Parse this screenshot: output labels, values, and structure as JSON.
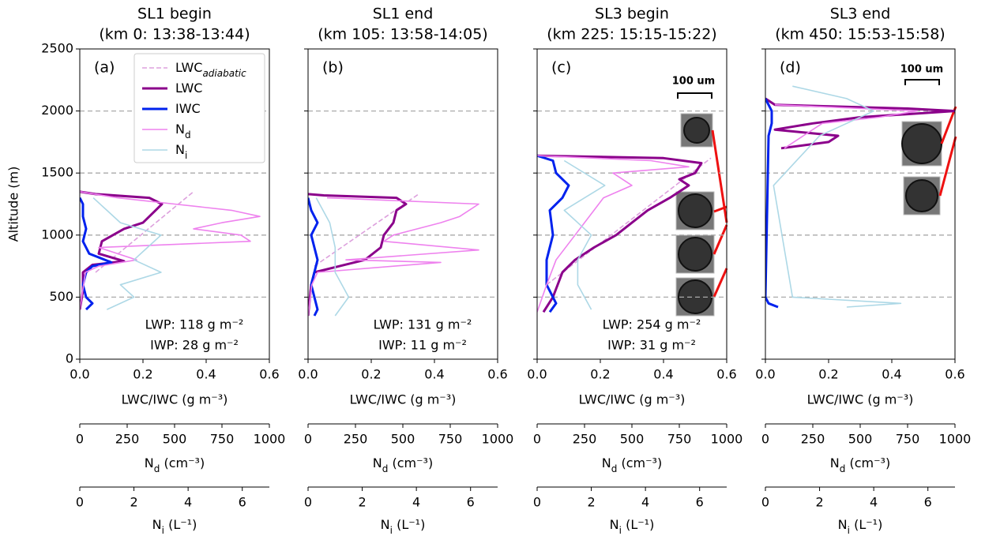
{
  "chart_data": [
    {
      "type": "line",
      "title": "SL1 begin",
      "subtitle": "(km 0: 13:38-13:44)",
      "panel_label": "(a)",
      "ylabel": "Altitude (m)",
      "xlabel": "LWC/IWC (g m⁻³)",
      "x2label": [
        "N",
        "d",
        " (cm⁻³)"
      ],
      "x3label": [
        "N",
        "i",
        " (L⁻¹)"
      ],
      "xlim": [
        0,
        0.6
      ],
      "xticks": [
        {
          "value": 0,
          "label": "0.0"
        },
        0.2,
        0.4,
        0.6
      ],
      "x2lim": [
        0,
        1000
      ],
      "x2ticks": [
        0,
        250,
        500,
        750,
        1000
      ],
      "x3lim": [
        0,
        7
      ],
      "x3ticks": [
        0,
        2,
        4,
        6
      ],
      "ylim": [
        0,
        2500
      ],
      "yticks": [
        0,
        500,
        1000,
        1500,
        2000,
        2500
      ],
      "show_ytick_labels": true,
      "grid": true,
      "legend": true,
      "annotations": [
        "LWP: 118 g m⁻²",
        "IWP: 28 g m⁻²"
      ],
      "series": [
        {
          "name": "LWC",
          "name_sub": "adiabatic",
          "color": "#dda0dd",
          "dashed": true,
          "y": [
            700,
            1350
          ],
          "values": [
            0.05,
            0.36
          ]
        },
        {
          "name": "LWC",
          "color": "#8b008b",
          "width": 3,
          "y": [
            400,
            550,
            700,
            760,
            790,
            850,
            950,
            1050,
            1100,
            1200,
            1250,
            1300,
            1330,
            1350
          ],
          "values": [
            0,
            0.01,
            0.01,
            0.04,
            0.14,
            0.06,
            0.07,
            0.14,
            0.2,
            0.24,
            0.26,
            0.22,
            0.05,
            0
          ]
        },
        {
          "name": "IWC",
          "color": "#0022ee",
          "width": 3,
          "y": [
            400,
            450,
            500,
            600,
            700,
            750,
            780,
            850,
            950,
            1050,
            1150,
            1250,
            1300
          ],
          "values": [
            0.02,
            0.04,
            0.02,
            0.01,
            0.02,
            0.04,
            0.1,
            0.03,
            0.01,
            0.02,
            0.01,
            0.01,
            0
          ]
        },
        {
          "name": "N",
          "name_sub": "d",
          "color": "#ee82ee",
          "axis": "x2",
          "y": [
            400,
            600,
            700,
            750,
            800,
            900,
            950,
            1000,
            1050,
            1100,
            1150,
            1200,
            1250,
            1300,
            1350
          ],
          "values": [
            0,
            20,
            30,
            100,
            300,
            100,
            900,
            850,
            600,
            750,
            950,
            800,
            500,
            200,
            0
          ]
        },
        {
          "name": "N",
          "name_sub": "i",
          "color": "#add8e6",
          "axis": "x3",
          "y": [
            400,
            500,
            600,
            700,
            800,
            900,
            1000,
            1100,
            1200,
            1300
          ],
          "values": [
            1,
            2,
            1.5,
            3,
            2,
            2.5,
            3,
            1.5,
            1,
            0.5
          ]
        }
      ]
    },
    {
      "type": "line",
      "title": "SL1 end",
      "subtitle": "(km 105: 13:58-14:05)",
      "panel_label": "(b)",
      "xlabel": "LWC/IWC (g m⁻³)",
      "x2label": [
        "N",
        "d",
        " (cm⁻³)"
      ],
      "x3label": [
        "N",
        "i",
        " (L⁻¹)"
      ],
      "xlim": [
        0,
        0.6
      ],
      "xticks": [
        {
          "value": 0,
          "label": "0.0"
        },
        0.2,
        0.4,
        0.6
      ],
      "x2lim": [
        0,
        1000
      ],
      "x2ticks": [
        0,
        250,
        500,
        750,
        1000
      ],
      "x3lim": [
        0,
        7
      ],
      "x3ticks": [
        0,
        2,
        4,
        6
      ],
      "ylim": [
        0,
        2500
      ],
      "yticks": [
        0,
        500,
        1000,
        1500,
        2000,
        2500
      ],
      "show_ytick_labels": false,
      "grid": true,
      "legend": false,
      "annotations": [
        "LWP: 131 g m⁻²",
        "IWP: 11 g m⁻²"
      ],
      "series": [
        {
          "name": "LWC",
          "name_sub": "adiabatic",
          "color": "#dda0dd",
          "dashed": true,
          "y": [
            750,
            1330
          ],
          "values": [
            0.02,
            0.35
          ]
        },
        {
          "name": "LWC",
          "color": "#8b008b",
          "width": 3,
          "y": [
            350,
            600,
            700,
            750,
            800,
            900,
            1000,
            1100,
            1200,
            1250,
            1300,
            1320,
            1330
          ],
          "values": [
            0,
            0.01,
            0.02,
            0.1,
            0.18,
            0.23,
            0.24,
            0.27,
            0.28,
            0.31,
            0.28,
            0.05,
            0
          ]
        },
        {
          "name": "IWC",
          "color": "#0022ee",
          "width": 3,
          "y": [
            350,
            400,
            500,
            600,
            700,
            800,
            900,
            1000,
            1100,
            1200,
            1300
          ],
          "values": [
            0.02,
            0.03,
            0.02,
            0.01,
            0.02,
            0.03,
            0.02,
            0.01,
            0.03,
            0.01,
            0
          ]
        },
        {
          "name": "N",
          "name_sub": "d",
          "color": "#ee82ee",
          "axis": "x2",
          "y": [
            350,
            600,
            700,
            780,
            800,
            880,
            950,
            1000,
            1100,
            1150,
            1250,
            1300
          ],
          "values": [
            0,
            20,
            50,
            700,
            200,
            900,
            400,
            450,
            700,
            800,
            900,
            100
          ]
        },
        {
          "name": "N",
          "name_sub": "i",
          "color": "#add8e6",
          "axis": "x3",
          "y": [
            350,
            500,
            700,
            900,
            1100,
            1300
          ],
          "values": [
            1,
            1.5,
            1,
            1,
            0.8,
            0.3
          ]
        }
      ]
    },
    {
      "type": "line",
      "title": "SL3 begin",
      "subtitle": "(km 225: 15:15-15:22)",
      "panel_label": "(c)",
      "scale_bar": "100 um",
      "xlabel": "LWC/IWC (g m⁻³)",
      "x2label": [
        "N",
        "d",
        " (cm⁻³)"
      ],
      "x3label": [
        "N",
        "i",
        " (L⁻¹)"
      ],
      "xlim": [
        0,
        0.6
      ],
      "xticks": [
        {
          "value": 0,
          "label": "0.0"
        },
        0.2,
        0.4,
        0.6
      ],
      "x2lim": [
        0,
        1000
      ],
      "x2ticks": [
        0,
        250,
        500,
        750,
        1000
      ],
      "x3lim": [
        0,
        7
      ],
      "x3ticks": [
        0,
        2,
        4,
        6
      ],
      "ylim": [
        0,
        2500
      ],
      "yticks": [
        0,
        500,
        1000,
        1500,
        2000,
        2500
      ],
      "show_ytick_labels": false,
      "grid": true,
      "legend": false,
      "annotations": [
        "LWP: 254 g m⁻²",
        "IWP: 31 g m⁻²"
      ],
      "series": [
        {
          "name": "LWC",
          "name_sub": "adiabatic",
          "color": "#dda0dd",
          "dashed": true,
          "y": [
            600,
            1620
          ],
          "values": [
            0.03,
            0.55
          ]
        },
        {
          "name": "LWC",
          "color": "#8b008b",
          "width": 3,
          "y": [
            380,
            500,
            700,
            800,
            900,
            1000,
            1100,
            1200,
            1300,
            1400,
            1450,
            1500,
            1580,
            1620,
            1640
          ],
          "values": [
            0.02,
            0.05,
            0.08,
            0.12,
            0.18,
            0.25,
            0.3,
            0.35,
            0.42,
            0.48,
            0.45,
            0.5,
            0.52,
            0.4,
            0
          ]
        },
        {
          "name": "IWC",
          "color": "#0022ee",
          "width": 3,
          "y": [
            380,
            450,
            600,
            800,
            1000,
            1200,
            1300,
            1400,
            1500,
            1600,
            1640
          ],
          "values": [
            0.04,
            0.06,
            0.03,
            0.03,
            0.05,
            0.04,
            0.08,
            0.1,
            0.06,
            0.05,
            0
          ]
        },
        {
          "name": "N",
          "name_sub": "d",
          "color": "#ee82ee",
          "axis": "x2",
          "y": [
            380,
            600,
            800,
            1000,
            1200,
            1300,
            1400,
            1500,
            1550,
            1600,
            1640
          ],
          "values": [
            0,
            50,
            100,
            200,
            300,
            350,
            500,
            400,
            800,
            600,
            0
          ]
        },
        {
          "name": "N",
          "name_sub": "i",
          "color": "#add8e6",
          "axis": "x3",
          "y": [
            400,
            600,
            800,
            1000,
            1200,
            1400,
            1600
          ],
          "values": [
            2,
            1.5,
            1.5,
            2,
            1,
            2.5,
            1
          ]
        }
      ]
    },
    {
      "type": "line",
      "title": "SL3 end",
      "subtitle": "(km 450: 15:53-15:58)",
      "panel_label": "(d)",
      "scale_bar": "100 um",
      "xlabel": "LWC/IWC (g m⁻³)",
      "x2label": [
        "N",
        "d",
        " (cm⁻³)"
      ],
      "x3label": [
        "N",
        "i",
        " (L⁻¹)"
      ],
      "xlim": [
        0,
        0.6
      ],
      "xticks": [
        {
          "value": 0,
          "label": "0.0"
        },
        0.2,
        0.4,
        0.6
      ],
      "x2lim": [
        0,
        1000
      ],
      "x2ticks": [
        0,
        250,
        500,
        750,
        1000
      ],
      "x3lim": [
        0,
        7
      ],
      "x3ticks": [
        0,
        2,
        4,
        6
      ],
      "ylim": [
        0,
        2500
      ],
      "yticks": [
        0,
        500,
        1000,
        1500,
        2000,
        2500
      ],
      "show_ytick_labels": false,
      "grid": true,
      "legend": false,
      "series": [
        {
          "name": "LWC",
          "color": "#8b008b",
          "width": 3,
          "y": [
            1700,
            1750,
            1800,
            1850,
            1900,
            1950,
            2000,
            2020,
            2050,
            2100
          ],
          "values": [
            0.05,
            0.2,
            0.23,
            0.03,
            0.15,
            0.3,
            0.6,
            0.45,
            0.03,
            0
          ]
        },
        {
          "name": "IWC",
          "color": "#0022ee",
          "width": 3,
          "y": [
            420,
            450,
            500,
            1800,
            1900,
            2000,
            2100
          ],
          "values": [
            0.04,
            0.01,
            0,
            0.01,
            0.02,
            0.02,
            0
          ]
        },
        {
          "name": "N",
          "name_sub": "d",
          "color": "#ee82ee",
          "axis": "x2",
          "y": [
            1700,
            1800,
            1900,
            1950,
            2000,
            2050
          ],
          "values": [
            100,
            200,
            300,
            600,
            800,
            50
          ]
        },
        {
          "name": "N",
          "name_sub": "i",
          "color": "#add8e6",
          "axis": "x3",
          "y": [
            420,
            450,
            500,
            1400,
            1800,
            1900,
            2000,
            2100,
            2200
          ],
          "values": [
            3,
            5,
            1,
            0.3,
            2,
            3,
            4,
            3,
            1
          ]
        }
      ]
    }
  ]
}
